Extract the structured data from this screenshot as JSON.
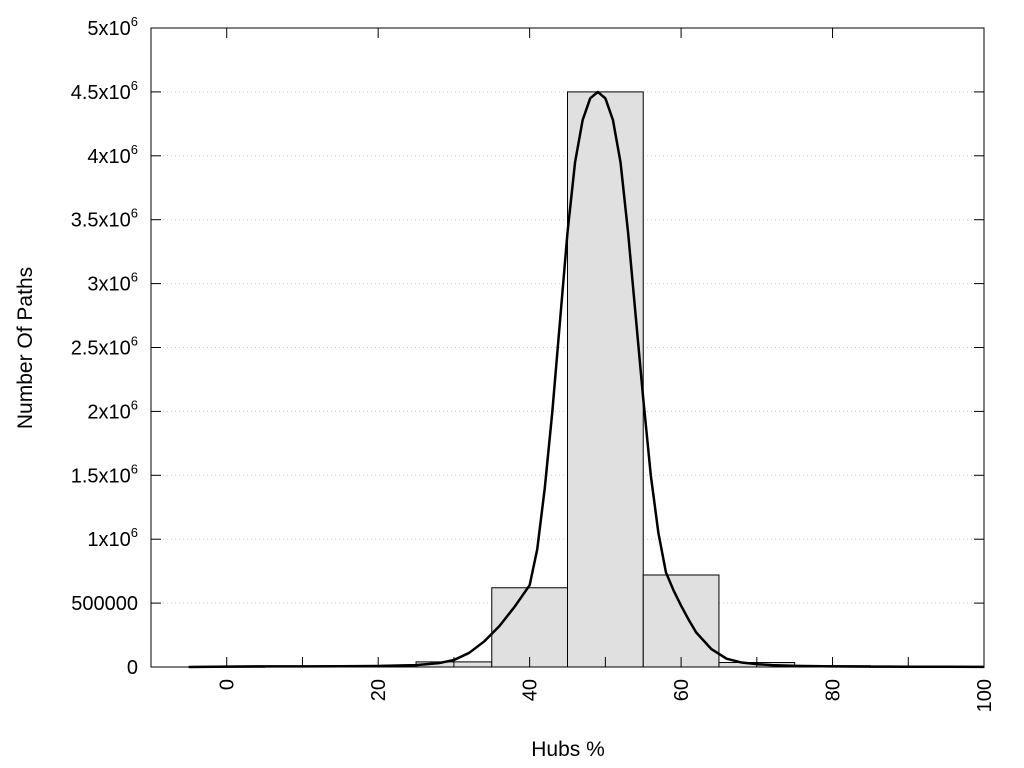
{
  "chart_data": {
    "type": "bar",
    "xlabel": "Hubs %",
    "ylabel": "Number Of Paths",
    "xlim": [
      -10,
      100
    ],
    "ylim": [
      0,
      5000000
    ],
    "x_ticks": [
      0,
      20,
      40,
      60,
      80,
      100
    ],
    "x_tick_labels": [
      "0",
      "20",
      "40",
      "60",
      "80",
      "100"
    ],
    "y_ticks": [
      {
        "value": 0,
        "mantissa": "0",
        "exponent": ""
      },
      {
        "value": 500000,
        "mantissa": "500000",
        "exponent": ""
      },
      {
        "value": 1000000,
        "mantissa": "1x10",
        "exponent": "6"
      },
      {
        "value": 1500000,
        "mantissa": "1.5x10",
        "exponent": "6"
      },
      {
        "value": 2000000,
        "mantissa": "2x10",
        "exponent": "6"
      },
      {
        "value": 2500000,
        "mantissa": "2.5x10",
        "exponent": "6"
      },
      {
        "value": 3000000,
        "mantissa": "3x10",
        "exponent": "6"
      },
      {
        "value": 3500000,
        "mantissa": "3.5x10",
        "exponent": "6"
      },
      {
        "value": 4000000,
        "mantissa": "4x10",
        "exponent": "6"
      },
      {
        "value": 4500000,
        "mantissa": "4.5x10",
        "exponent": "6"
      },
      {
        "value": 5000000,
        "mantissa": "5x10",
        "exponent": "6"
      }
    ],
    "grid": "horizontal dotted",
    "bars": [
      {
        "x_start": -5,
        "x_end": 5,
        "value": 2000
      },
      {
        "x_start": 5,
        "x_end": 15,
        "value": 4000
      },
      {
        "x_start": 15,
        "x_end": 25,
        "value": 10000
      },
      {
        "x_start": 25,
        "x_end": 35,
        "value": 40000
      },
      {
        "x_start": 35,
        "x_end": 45,
        "value": 620000
      },
      {
        "x_start": 45,
        "x_end": 55,
        "value": 4500000
      },
      {
        "x_start": 55,
        "x_end": 65,
        "value": 720000
      },
      {
        "x_start": 65,
        "x_end": 75,
        "value": 35000
      },
      {
        "x_start": 75,
        "x_end": 85,
        "value": 10000
      },
      {
        "x_start": 85,
        "x_end": 95,
        "value": 3000
      },
      {
        "x_start": 95,
        "x_end": 100,
        "value": 1000
      }
    ],
    "curve": {
      "x": [
        -5,
        0,
        5,
        10,
        15,
        20,
        25,
        28,
        30,
        32,
        34,
        36,
        38,
        40,
        41,
        42,
        43,
        44,
        45,
        46,
        47,
        48,
        49,
        50,
        51,
        52,
        53,
        54,
        55,
        56,
        57,
        58,
        59,
        60,
        61,
        62,
        64,
        66,
        68,
        70,
        72,
        75,
        80,
        85,
        90,
        95,
        100
      ],
      "y": [
        0,
        3000,
        5000,
        5000,
        6000,
        8000,
        15000,
        30000,
        55000,
        110000,
        200000,
        320000,
        470000,
        640000,
        920000,
        1400000,
        2000000,
        2700000,
        3400000,
        3950000,
        4280000,
        4450000,
        4500000,
        4450000,
        4280000,
        3950000,
        3400000,
        2750000,
        2100000,
        1500000,
        1050000,
        740000,
        600000,
        480000,
        370000,
        270000,
        140000,
        65000,
        35000,
        22000,
        15000,
        9000,
        5000,
        3000,
        2000,
        1500,
        1000
      ]
    },
    "bar_fill": "#e0e0e0",
    "bar_stroke": "#000000",
    "curve_color": "#000000"
  }
}
